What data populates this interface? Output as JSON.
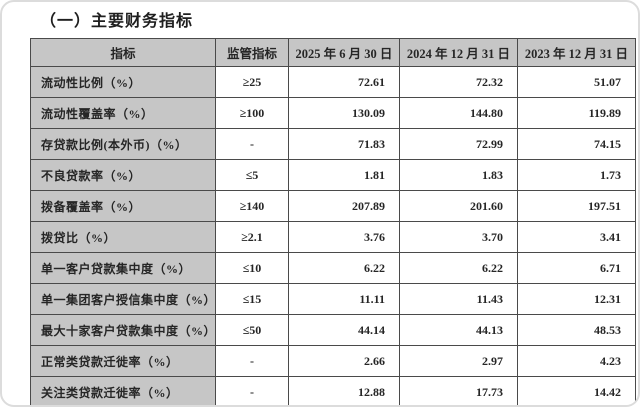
{
  "page": {
    "title": "（一）主要财务指标"
  },
  "colors": {
    "header_bg": "#c6c6c6",
    "label_bg": "#c6c6c6",
    "border": "#4a4a4a",
    "text": "#262626"
  },
  "table": {
    "headers": {
      "indicator": "指标",
      "regulatory": "监管指标",
      "date_2025": "2025 年 6 月 30 日",
      "date_2024": "2024 年 12 月 31 日",
      "date_2023": "2023 年 12 月 31 日"
    },
    "rows": [
      {
        "indicator": "流动性比例（%）",
        "regulatory": "≥25",
        "v2025": "72.61",
        "v2024": "72.32",
        "v2023": "51.07"
      },
      {
        "indicator": "流动性覆盖率（%）",
        "regulatory": "≥100",
        "v2025": "130.09",
        "v2024": "144.80",
        "v2023": "119.89"
      },
      {
        "indicator": "存贷款比例(本外币)（%）",
        "regulatory": "-",
        "v2025": "71.83",
        "v2024": "72.99",
        "v2023": "74.15"
      },
      {
        "indicator": "不良贷款率（%）",
        "regulatory": "≤5",
        "v2025": "1.81",
        "v2024": "1.83",
        "v2023": "1.73"
      },
      {
        "indicator": "拨备覆盖率（%）",
        "regulatory": "≥140",
        "v2025": "207.89",
        "v2024": "201.60",
        "v2023": "197.51"
      },
      {
        "indicator": "拨贷比（%）",
        "regulatory": "≥2.1",
        "v2025": "3.76",
        "v2024": "3.70",
        "v2023": "3.41"
      },
      {
        "indicator": "单一客户贷款集中度（%）",
        "regulatory": "≤10",
        "v2025": "6.22",
        "v2024": "6.22",
        "v2023": "6.71"
      },
      {
        "indicator": "单一集团客户授信集中度（%）",
        "regulatory": "≤15",
        "v2025": "11.11",
        "v2024": "11.43",
        "v2023": "12.31"
      },
      {
        "indicator": "最大十家客户贷款集中度（%）",
        "regulatory": "≤50",
        "v2025": "44.14",
        "v2024": "44.13",
        "v2023": "48.53"
      },
      {
        "indicator": "正常类贷款迁徙率（%）",
        "regulatory": "-",
        "v2025": "2.66",
        "v2024": "2.97",
        "v2023": "4.23"
      },
      {
        "indicator": "关注类贷款迁徙率（%）",
        "regulatory": "-",
        "v2025": "12.88",
        "v2024": "17.73",
        "v2023": "14.42"
      }
    ]
  }
}
